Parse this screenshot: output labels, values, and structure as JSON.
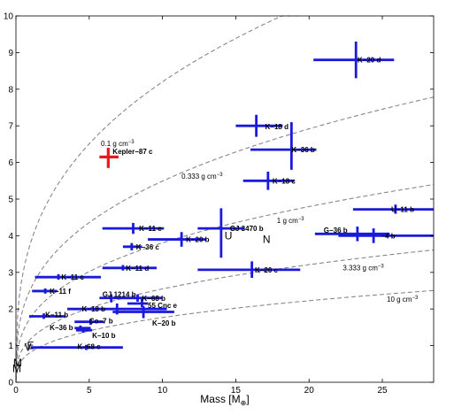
{
  "chart_data": {
    "type": "scatter",
    "xlabel": "Mass [M",
    "xlabel_sub": "⊕",
    "xlabel_close": "]",
    "xlim": [
      0,
      28.5
    ],
    "ylim": [
      0,
      10
    ],
    "x_ticks": [
      0,
      5,
      10,
      15,
      20,
      25
    ],
    "y_ticks": [
      0,
      1,
      2,
      3,
      4,
      5,
      6,
      7,
      8,
      9,
      10
    ],
    "grid": false,
    "colors": {
      "primary": "#1a1adc",
      "highlight": "#e8191a",
      "contour": "#888888"
    },
    "density_contours": [
      {
        "label": "0.1 g cm",
        "sup": "−3",
        "density": 0.1,
        "label_x": 5.8,
        "label_y": 6.45
      },
      {
        "label": "0.333 g cm",
        "sup": "−3",
        "density": 0.333,
        "label_x": 11.3,
        "label_y": 5.55
      },
      {
        "label": "1 g cm",
        "sup": "−3",
        "density": 1.0,
        "label_x": 17.8,
        "label_y": 4.35
      },
      {
        "label": "3.333 g cm",
        "sup": "−3",
        "density": 3.333,
        "label_x": 22.3,
        "label_y": 3.05
      },
      {
        "label": "10 g cm",
        "sup": "−3",
        "density": 10.0,
        "label_x": 25.3,
        "label_y": 2.2
      }
    ],
    "points": [
      {
        "name": "K−20 d",
        "x": 23.2,
        "y": 8.8,
        "xerr": [
          20.3,
          25.8
        ],
        "yerr": [
          8.3,
          9.3
        ],
        "color": "blue",
        "lx": 23.3,
        "ly": 8.8
      },
      {
        "name": "K−18 d",
        "x": 16.4,
        "y": 7.0,
        "xerr": [
          15.0,
          18.2
        ],
        "yerr": [
          6.7,
          7.3
        ],
        "color": "blue",
        "lx": 17.0,
        "ly": 6.98
      },
      {
        "name": "K−36 b",
        "x": 18.8,
        "y": 6.35,
        "xerr": [
          16.0,
          20.5
        ],
        "yerr": [
          5.8,
          7.1
        ],
        "color": "blue",
        "lx": 18.8,
        "ly": 6.35
      },
      {
        "name": "Kepler−87 c",
        "x": 6.3,
        "y": 6.15,
        "xerr": [
          5.7,
          7.0
        ],
        "yerr": [
          5.85,
          6.4
        ],
        "color": "red",
        "lx": 6.6,
        "ly": 6.3
      },
      {
        "name": "K−18 c",
        "x": 17.2,
        "y": 5.5,
        "xerr": [
          15.5,
          19.0
        ],
        "yerr": [
          5.25,
          5.75
        ],
        "color": "blue",
        "lx": 17.5,
        "ly": 5.5
      },
      {
        "name": "U−11 b",
        "x": 25.9,
        "y": 4.72,
        "xerr": [
          23.0,
          28.5
        ],
        "yerr": [
          4.6,
          4.85
        ],
        "color": "blue",
        "lx": 25.6,
        "ly": 4.72
      },
      {
        "name": "GJ 3470 b",
        "x": 14.0,
        "y": 4.2,
        "xerr": [
          12.4,
          15.6
        ],
        "yerr": [
          3.4,
          4.75
        ],
        "color": "blue",
        "lx": 14.6,
        "ly": 4.2
      },
      {
        "name": "K−11 e",
        "x": 8.0,
        "y": 4.2,
        "xerr": [
          5.9,
          10.1
        ],
        "yerr": [
          4.05,
          4.35
        ],
        "color": "blue",
        "lx": 8.4,
        "ly": 4.2
      },
      {
        "name": "K−20 b",
        "x": 11.3,
        "y": 3.9,
        "xerr": [
          9.0,
          13.0
        ],
        "yerr": [
          3.7,
          4.1
        ],
        "color": "blue",
        "lx": 11.6,
        "ly": 3.9
      },
      {
        "name": "G−36 b",
        "x": 23.3,
        "y": 4.05,
        "xerr": [
          20.4,
          25.5
        ],
        "yerr": [
          3.85,
          4.25
        ],
        "color": "blue",
        "lx": 21.0,
        "ly": 4.15
      },
      {
        "name": "−4 b",
        "x": 24.4,
        "y": 4.0,
        "xerr": [
          22.0,
          28.5
        ],
        "yerr": [
          3.8,
          4.2
        ],
        "color": "blue",
        "lx": 24.9,
        "ly": 4.0
      },
      {
        "name": "K−36 c",
        "x": 7.9,
        "y": 3.7,
        "xerr": [
          7.3,
          8.6
        ],
        "yerr": [
          3.6,
          3.8
        ],
        "color": "blue",
        "lx": 8.2,
        "ly": 3.7
      },
      {
        "name": "K−11 d",
        "x": 7.3,
        "y": 3.12,
        "xerr": [
          5.9,
          9.6
        ],
        "yerr": [
          3.05,
          3.2
        ],
        "color": "blue",
        "lx": 7.5,
        "ly": 3.12
      },
      {
        "name": "K−20 c",
        "x": 16.1,
        "y": 3.07,
        "xerr": [
          12.4,
          19.4
        ],
        "yerr": [
          2.85,
          3.3
        ],
        "color": "blue",
        "lx": 16.3,
        "ly": 3.07
      },
      {
        "name": "K−11 c",
        "x": 2.9,
        "y": 2.87,
        "xerr": [
          1.3,
          5.8
        ],
        "yerr": [
          2.8,
          2.95
        ],
        "color": "blue",
        "lx": 3.1,
        "ly": 2.87
      },
      {
        "name": "K−11 f",
        "x": 2.0,
        "y": 2.49,
        "xerr": [
          1.1,
          2.8
        ],
        "yerr": [
          2.42,
          2.56
        ],
        "color": "blue",
        "lx": 2.3,
        "ly": 2.49
      },
      {
        "name": "GJ 1214 b",
        "x": 6.5,
        "y": 2.3,
        "xerr": [
          5.7,
          8.4
        ],
        "yerr": [
          2.18,
          2.4
        ],
        "color": "blue",
        "lx": 5.9,
        "ly": 2.4
      },
      {
        "name": "K−68 b",
        "x": 8.3,
        "y": 2.3,
        "xerr": [
          6.9,
          10.0
        ],
        "yerr": [
          2.2,
          2.4
        ],
        "color": "blue",
        "lx": 8.6,
        "ly": 2.3
      },
      {
        "name": "55 Cnc e",
        "x": 8.6,
        "y": 2.15,
        "xerr": [
          7.6,
          9.0
        ],
        "yerr": [
          2.05,
          2.3
        ],
        "color": "blue",
        "lx": 9.0,
        "ly": 2.1
      },
      {
        "name": "K−18 b",
        "x": 6.9,
        "y": 2.0,
        "xerr": [
          3.5,
          10.3
        ],
        "yerr": [
          1.85,
          2.15
        ],
        "color": "blue",
        "lx": 4.5,
        "ly": 2.0
      },
      {
        "name": "K−20 b",
        "x": 8.7,
        "y": 1.92,
        "xerr": [
          6.6,
          10.8
        ],
        "yerr": [
          1.75,
          2.08
        ],
        "color": "blue",
        "lx": 9.3,
        "ly": 1.62
      },
      {
        "name": "K−11 b",
        "x": 1.9,
        "y": 1.8,
        "xerr": [
          0.9,
          3.4
        ],
        "yerr": [
          1.73,
          1.88
        ],
        "color": "blue",
        "lx": 2.0,
        "ly": 1.85
      },
      {
        "name": "Co−7 b",
        "x": 5.1,
        "y": 1.65,
        "xerr": [
          4.0,
          6.0
        ],
        "yerr": [
          1.57,
          1.72
        ],
        "color": "blue",
        "lx": 5.0,
        "ly": 1.68
      },
      {
        "name": "K−36 b",
        "x": 4.4,
        "y": 1.48,
        "xerr": [
          4.0,
          5.1
        ],
        "yerr": [
          1.4,
          1.55
        ],
        "color": "blue",
        "lx": 2.3,
        "ly": 1.5
      },
      {
        "name": "K−10 b",
        "x": 4.6,
        "y": 1.42,
        "xerr": [
          4.1,
          5.2
        ],
        "yerr": [
          1.35,
          1.5
        ],
        "color": "blue",
        "lx": 5.2,
        "ly": 1.28
      },
      {
        "name": "K−68 c",
        "x": 4.8,
        "y": 0.95,
        "xerr": [
          1.0,
          7.3
        ],
        "yerr": [
          0.88,
          1.02
        ],
        "color": "blue",
        "lx": 4.2,
        "ly": 0.98
      }
    ],
    "solar_system": [
      {
        "label": "U",
        "x": 14.5,
        "y": 4.0
      },
      {
        "label": "N",
        "x": 17.1,
        "y": 3.9
      },
      {
        "label": "E",
        "x": 1.0,
        "y": 1.0
      },
      {
        "label": "V",
        "x": 0.82,
        "y": 0.95
      },
      {
        "label": "M",
        "x": 0.11,
        "y": 0.53
      },
      {
        "label": "M",
        "x": 0.06,
        "y": 0.38
      }
    ]
  }
}
